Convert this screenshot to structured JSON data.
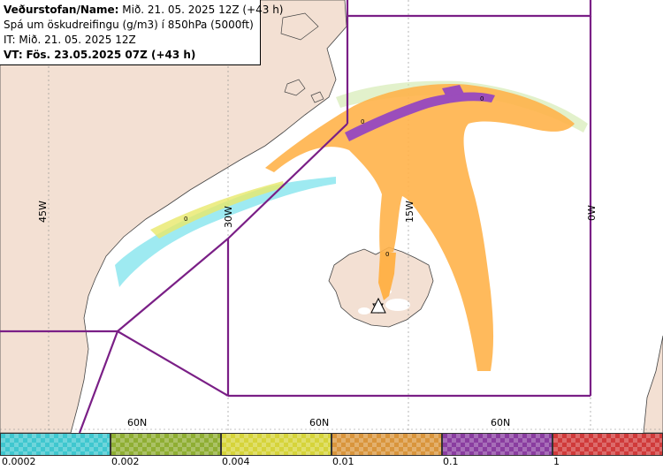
{
  "header": {
    "line1_label": "Veðurstofan/Name:",
    "line1_value": "Mið. 21. 05. 2025 12Z (+43 h)",
    "line2": "Spá um öskudreifingu (g/m3) í 850hPa (5000ft)",
    "line3": "IT: Mið. 21. 05. 2025 12Z",
    "line4_label": "VT:",
    "line4_value": "Fös. 23.05.2025 07Z (+43 h)"
  },
  "map": {
    "lon_labels": [
      "45W",
      "30W",
      "15W",
      "0W"
    ],
    "lat_labels": [
      "60N",
      "60N",
      "60N"
    ],
    "volcano_icon": "volcano-triangle-icon",
    "colors": {
      "land": "#f3e0d3",
      "sea": "#ffffff",
      "boundary": "#7a1f86",
      "ash_orange": "#ffb24a",
      "ash_purple": "#9b4dbb",
      "ash_yellow": "#e8e86a",
      "ash_cyan": "#4fd8e6"
    }
  },
  "legend": {
    "colors": [
      "#3fc7cf",
      "#8fae33",
      "#d6d43a",
      "#d9953c",
      "#8a3da0",
      "#d03a3a"
    ],
    "ticks": [
      "0.0002",
      "0.002",
      "0.004",
      "0.01",
      "0.1",
      "1"
    ]
  }
}
